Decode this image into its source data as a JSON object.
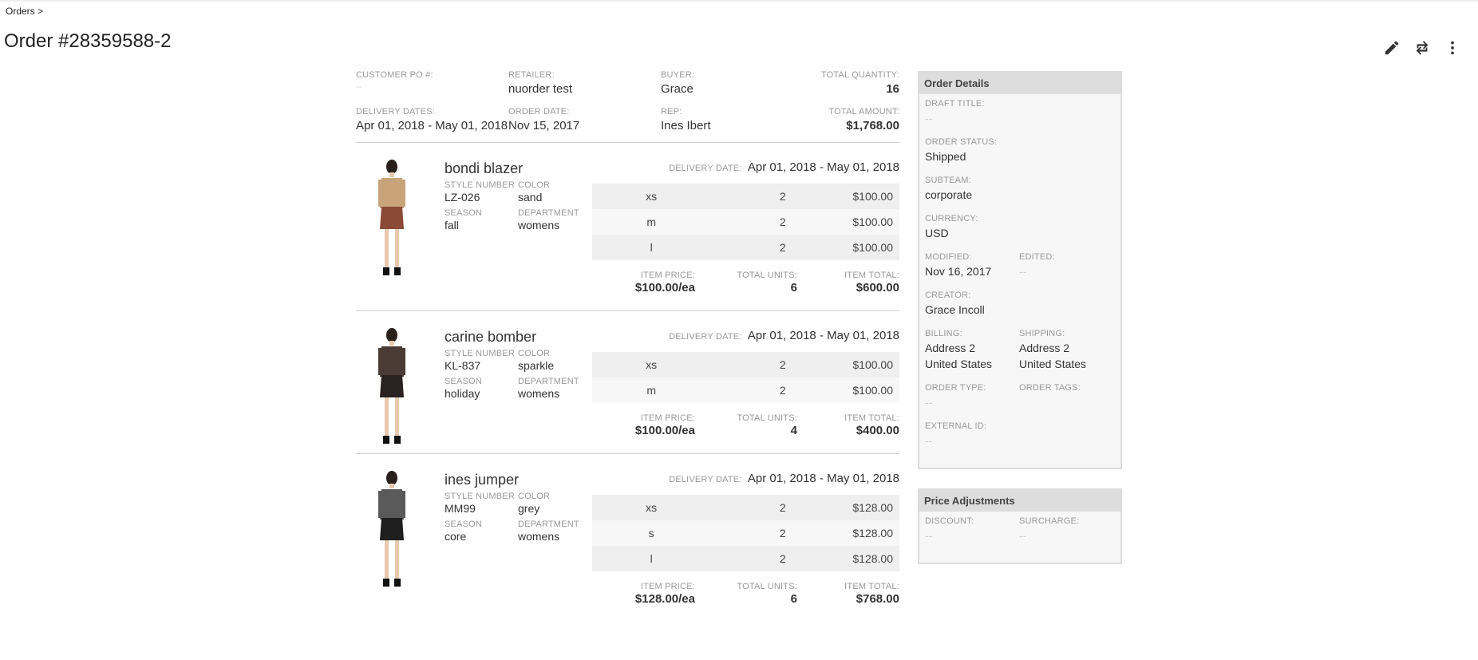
{
  "breadcrumb": "Orders >",
  "page_title": "Order #28359588-2",
  "icons": [
    "pencil-icon",
    "sync-icon",
    "more-vert-icon"
  ],
  "summary": {
    "customer_po_label": "CUSTOMER PO #:",
    "customer_po_value": "--",
    "retailer_label": "RETAILER:",
    "retailer_value": "nuorder test",
    "buyer_label": "BUYER:",
    "buyer_value": "Grace",
    "total_quantity_label": "TOTAL QUANTITY:",
    "total_quantity_value": "16",
    "delivery_dates_label": "DELIVERY DATES:",
    "delivery_dates_value": "Apr 01, 2018 - May 01, 2018",
    "order_date_label": "ORDER DATE:",
    "order_date_value": "Nov 15, 2017",
    "rep_label": "REP:",
    "rep_value": "Ines Ibert",
    "total_amount_label": "TOTAL AMOUNT:",
    "total_amount_value": "$1,768.00"
  },
  "labels": {
    "style_number": "STYLE NUMBER",
    "color": "COLOR",
    "season": "SEASON",
    "department": "DEPARTMENT",
    "delivery_date": "DELIVERY DATE:",
    "item_price": "ITEM PRICE:",
    "total_units": "TOTAL UNITS:",
    "item_total": "ITEM TOTAL:"
  },
  "items": [
    {
      "name": "bondi blazer",
      "style_number": "LZ-026",
      "color": "sand",
      "season": "fall",
      "department": "womens",
      "delivery_date": "Apr 01, 2018 - May 01, 2018",
      "sizes": [
        {
          "size": "xs",
          "qty": "2",
          "price": "$100.00"
        },
        {
          "size": "m",
          "qty": "2",
          "price": "$100.00"
        },
        {
          "size": "l",
          "qty": "2",
          "price": "$100.00"
        }
      ],
      "item_price": "$100.00/ea",
      "total_units": "6",
      "item_total": "$600.00",
      "top_color": "#c9a47a",
      "bottom_color": "#8a4a36"
    },
    {
      "name": "carine bomber",
      "style_number": "KL-837",
      "color": "sparkle",
      "season": "holiday",
      "department": "womens",
      "delivery_date": "Apr 01, 2018 - May 01, 2018",
      "sizes": [
        {
          "size": "xs",
          "qty": "2",
          "price": "$100.00"
        },
        {
          "size": "m",
          "qty": "2",
          "price": "$100.00"
        }
      ],
      "item_price": "$100.00/ea",
      "total_units": "4",
      "item_total": "$400.00",
      "top_color": "#4a3b35",
      "bottom_color": "#2a2220"
    },
    {
      "name": "ines jumper",
      "style_number": "MM99",
      "color": "grey",
      "season": "core",
      "department": "womens",
      "delivery_date": "Apr 01, 2018 - May 01, 2018",
      "sizes": [
        {
          "size": "xs",
          "qty": "2",
          "price": "$128.00"
        },
        {
          "size": "s",
          "qty": "2",
          "price": "$128.00"
        },
        {
          "size": "l",
          "qty": "2",
          "price": "$128.00"
        }
      ],
      "item_price": "$128.00/ea",
      "total_units": "6",
      "item_total": "$768.00",
      "top_color": "#5a5a5a",
      "bottom_color": "#1e1e1e"
    }
  ],
  "order_details": {
    "header": "Order Details",
    "draft_title_label": "DRAFT TITLE:",
    "draft_title_value": "--",
    "order_status_label": "ORDER STATUS:",
    "order_status_value": "Shipped",
    "subteam_label": "SUBTEAM:",
    "subteam_value": "corporate",
    "currency_label": "CURRENCY:",
    "currency_value": "USD",
    "modified_label": "MODIFIED:",
    "modified_value": "Nov 16, 2017",
    "edited_label": "EDITED:",
    "edited_value": "--",
    "creator_label": "CREATOR:",
    "creator_value": "Grace Incoll",
    "billing_label": "BILLING:",
    "billing_line1": "Address 2",
    "billing_line2": "United States",
    "shipping_label": "SHIPPING:",
    "shipping_line1": "Address 2",
    "shipping_line2": "United States",
    "order_type_label": "ORDER TYPE:",
    "order_type_value": "--",
    "order_tags_label": "ORDER TAGS:",
    "external_id_label": "EXTERNAL ID:",
    "external_id_value": "--"
  },
  "price_adjustments": {
    "header": "Price Adjustments",
    "discount_label": "DISCOUNT:",
    "discount_value": "--",
    "surcharge_label": "SURCHARGE:",
    "surcharge_value": "--"
  }
}
